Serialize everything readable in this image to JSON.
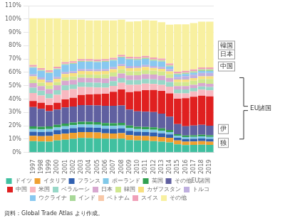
{
  "chart_data": {
    "type": "bar",
    "stacked": true,
    "grid": true,
    "legend": "bottom",
    "categories": [
      "1997",
      "1998",
      "1999",
      "2000",
      "2001",
      "2002",
      "2003",
      "2004",
      "2005",
      "2006",
      "2007",
      "2008",
      "2009",
      "2010",
      "2011",
      "2012",
      "2013",
      "2014",
      "2015",
      "2016",
      "2017",
      "2018",
      "2019"
    ],
    "ylim": [
      0,
      110
    ],
    "yticks": [
      {
        "value": 0,
        "label": "0%"
      },
      {
        "value": 10,
        "label": "10%"
      },
      {
        "value": 20,
        "label": "20%"
      },
      {
        "value": 30,
        "label": "30%"
      },
      {
        "value": 40,
        "label": "40%"
      },
      {
        "value": 50,
        "label": "50%"
      },
      {
        "value": 60,
        "label": "60%"
      },
      {
        "value": 70,
        "label": "70%"
      },
      {
        "value": 80,
        "label": "80%"
      },
      {
        "value": 90,
        "label": "90%"
      },
      {
        "value": 100,
        "label": "100%"
      },
      {
        "value": 110,
        "label": "110%"
      }
    ],
    "series": [
      {
        "name": "ドイツ",
        "color": "#40c0a0",
        "values": [
          8.5,
          8.2,
          8.1,
          9.0,
          9.5,
          10.2,
          10.8,
          10.7,
          10.5,
          10.3,
          10.2,
          10.3,
          9.2,
          9.0,
          8.8,
          8.5,
          8.0,
          7.5,
          6.0,
          5.5,
          5.7,
          5.8,
          5.6
        ]
      },
      {
        "name": "イタリア",
        "color": "#f0a030",
        "values": [
          4.0,
          4.0,
          4.2,
          4.5,
          4.5,
          4.5,
          4.5,
          4.5,
          4.5,
          4.0,
          4.0,
          4.2,
          3.8,
          3.5,
          3.5,
          3.5,
          3.5,
          3.5,
          3.0,
          2.5,
          2.5,
          2.6,
          2.5
        ]
      },
      {
        "name": "フランス",
        "color": "#3060b0",
        "values": [
          3.0,
          3.0,
          3.2,
          3.2,
          3.5,
          3.5,
          3.5,
          3.5,
          3.5,
          3.5,
          3.5,
          3.5,
          3.2,
          3.0,
          3.0,
          3.0,
          2.8,
          2.5,
          2.0,
          2.0,
          2.0,
          2.0,
          2.0
        ]
      },
      {
        "name": "ポーランド",
        "color": "#80c8e8",
        "values": [
          2.0,
          2.0,
          2.0,
          2.0,
          2.2,
          2.2,
          2.2,
          2.2,
          2.2,
          2.2,
          2.2,
          2.2,
          2.0,
          2.0,
          2.0,
          2.0,
          2.0,
          1.8,
          1.5,
          1.5,
          1.5,
          1.6,
          1.5
        ]
      },
      {
        "name": "英国",
        "color": "#30a050",
        "values": [
          2.0,
          2.0,
          2.0,
          2.0,
          2.0,
          2.0,
          2.0,
          2.0,
          2.0,
          2.0,
          2.0,
          2.0,
          2.0,
          1.8,
          1.8,
          1.8,
          1.8,
          1.5,
          1.2,
          1.2,
          1.2,
          1.2,
          1.2
        ]
      },
      {
        "name": "その他EU諸国",
        "color": "#6060a0",
        "values": [
          14.5,
          13.5,
          11.5,
          11.5,
          12.0,
          12.0,
          12.5,
          12.5,
          12.5,
          13.0,
          13.0,
          13.0,
          12.0,
          11.5,
          11.5,
          11.5,
          11.0,
          10.0,
          7.5,
          7.0,
          7.3,
          7.5,
          7.2
        ]
      },
      {
        "name": "中国",
        "color": "#e02020",
        "values": [
          4.5,
          4.5,
          4.5,
          5.0,
          6.0,
          6.5,
          7.5,
          8.0,
          8.5,
          9.0,
          10.5,
          12.0,
          13.0,
          15.0,
          16.0,
          16.5,
          17.0,
          17.5,
          19.0,
          21.0,
          21.5,
          21.8,
          22.0
        ]
      },
      {
        "name": "米国",
        "color": "#f8b8c0",
        "values": [
          6.0,
          5.5,
          5.0,
          6.0,
          7.0,
          6.5,
          6.0,
          5.5,
          5.0,
          4.5,
          4.5,
          5.0,
          5.5,
          5.0,
          5.0,
          4.5,
          4.5,
          5.0,
          4.0,
          3.5,
          4.0,
          4.5,
          4.5
        ]
      },
      {
        "name": "ベラルーシ",
        "color": "#98d8c8",
        "values": [
          4.0,
          3.5,
          3.5,
          3.5,
          3.5,
          3.5,
          3.5,
          3.5,
          3.5,
          3.5,
          3.5,
          3.5,
          3.5,
          3.5,
          3.5,
          3.5,
          3.5,
          3.5,
          3.0,
          3.0,
          2.5,
          2.5,
          2.5
        ]
      },
      {
        "name": "日本",
        "color": "#d8a8d0",
        "values": [
          3.5,
          3.5,
          3.5,
          3.5,
          3.5,
          3.5,
          3.5,
          3.5,
          3.5,
          3.5,
          3.5,
          3.5,
          3.5,
          3.5,
          3.5,
          3.5,
          3.5,
          3.0,
          2.5,
          2.5,
          2.5,
          2.5,
          2.5
        ]
      },
      {
        "name": "韓国",
        "color": "#d0e890",
        "values": [
          2.5,
          2.5,
          2.5,
          2.5,
          2.5,
          2.5,
          2.5,
          2.5,
          2.5,
          3.0,
          3.0,
          3.0,
          3.0,
          3.0,
          3.0,
          3.0,
          3.0,
          3.0,
          3.0,
          3.0,
          3.0,
          3.0,
          3.5
        ]
      },
      {
        "name": "カザフスタン",
        "color": "#f8e080",
        "values": [
          2.5,
          2.5,
          2.5,
          2.5,
          2.5,
          2.5,
          2.5,
          2.5,
          2.5,
          2.5,
          2.5,
          2.5,
          2.5,
          2.5,
          2.5,
          2.0,
          2.0,
          2.0,
          2.0,
          2.0,
          2.0,
          2.0,
          2.0
        ]
      },
      {
        "name": "トルコ",
        "color": "#c0b0e0",
        "values": [
          1.5,
          1.5,
          1.5,
          1.5,
          1.5,
          1.5,
          1.5,
          1.5,
          1.5,
          1.5,
          1.5,
          1.5,
          1.5,
          1.5,
          1.5,
          1.5,
          1.5,
          1.5,
          2.0,
          2.5,
          2.5,
          2.5,
          2.5
        ]
      },
      {
        "name": "ウクライナ",
        "color": "#88c8f0",
        "values": [
          5.0,
          5.0,
          5.5,
          5.5,
          5.5,
          5.5,
          5.5,
          5.5,
          5.5,
          5.5,
          5.0,
          5.0,
          5.0,
          4.5,
          4.5,
          4.0,
          4.0,
          2.0,
          1.5,
          1.5,
          1.5,
          1.5,
          1.5
        ]
      },
      {
        "name": "インド",
        "color": "#a8d898",
        "values": [
          0.5,
          0.5,
          0.5,
          0.5,
          0.5,
          0.5,
          0.5,
          0.5,
          0.5,
          0.5,
          0.5,
          0.5,
          0.5,
          0.8,
          0.8,
          0.8,
          0.8,
          0.8,
          0.8,
          1.0,
          1.0,
          1.2,
          1.2
        ]
      },
      {
        "name": "ベトナム",
        "color": "#f8c8a8",
        "values": [
          0.3,
          0.3,
          0.3,
          0.3,
          0.3,
          0.3,
          0.3,
          0.3,
          0.3,
          0.3,
          0.3,
          0.3,
          0.3,
          0.3,
          0.3,
          0.3,
          0.3,
          0.3,
          0.3,
          0.3,
          0.3,
          0.3,
          0.3
        ]
      },
      {
        "name": "スイス",
        "color": "#f0a0b8",
        "values": [
          1.2,
          1.2,
          1.2,
          1.2,
          1.2,
          1.2,
          1.2,
          1.2,
          1.2,
          1.2,
          1.2,
          1.2,
          1.2,
          1.2,
          1.2,
          1.2,
          1.2,
          1.2,
          1.2,
          1.2,
          1.2,
          1.2,
          1.2
        ]
      },
      {
        "name": "その他",
        "color": "#f8f0a0",
        "values": [
          35.0,
          37.3,
          39.0,
          36.3,
          31.8,
          31.1,
          29.5,
          29.1,
          29.3,
          29.0,
          28.1,
          26.3,
          26.3,
          26.7,
          26.7,
          27.7,
          27.2,
          29.2,
          35.5,
          34.8,
          34.8,
          34.3,
          34.3
        ]
      }
    ],
    "annotations": [
      "韓国",
      "日本",
      "中国",
      "伊",
      "独",
      "EU諸国",
      "資料：Global Trade Atlas より作成。"
    ]
  }
}
